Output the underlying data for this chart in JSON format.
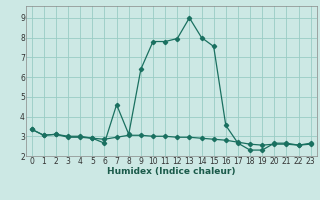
{
  "xlabel": "Humidex (Indice chaleur)",
  "background_color": "#cce8e4",
  "grid_color": "#99ccc4",
  "line_color": "#1a7060",
  "xlim": [
    -0.5,
    23.5
  ],
  "ylim": [
    2.0,
    9.6
  ],
  "yticks": [
    2,
    3,
    4,
    5,
    6,
    7,
    8,
    9
  ],
  "xticks": [
    0,
    1,
    2,
    3,
    4,
    5,
    6,
    7,
    8,
    9,
    10,
    11,
    12,
    13,
    14,
    15,
    16,
    17,
    18,
    19,
    20,
    21,
    22,
    23
  ],
  "series1_x": [
    0,
    1,
    2,
    3,
    4,
    5,
    6,
    7,
    8,
    9,
    10,
    11,
    12,
    13,
    14,
    15,
    16,
    17,
    18,
    19,
    20,
    21,
    22,
    23
  ],
  "series1_y": [
    3.35,
    3.05,
    3.1,
    3.0,
    3.0,
    2.9,
    2.65,
    4.6,
    3.1,
    6.4,
    7.8,
    7.8,
    7.95,
    9.0,
    8.0,
    7.55,
    3.55,
    2.65,
    2.3,
    2.3,
    2.65,
    2.65,
    2.55,
    2.65
  ],
  "series2_x": [
    0,
    1,
    2,
    3,
    4,
    5,
    6,
    7,
    8,
    9,
    10,
    11,
    12,
    13,
    14,
    15,
    16,
    17,
    18,
    19,
    20,
    21,
    22,
    23
  ],
  "series2_y": [
    3.35,
    3.05,
    3.1,
    2.95,
    2.95,
    2.9,
    2.85,
    2.95,
    3.05,
    3.05,
    3.0,
    3.0,
    2.95,
    2.95,
    2.9,
    2.85,
    2.8,
    2.7,
    2.6,
    2.55,
    2.6,
    2.6,
    2.55,
    2.6
  ],
  "marker": "D",
  "marker_size": 2.2,
  "linewidth": 0.9,
  "tick_fontsize": 5.5,
  "xlabel_fontsize": 6.5
}
